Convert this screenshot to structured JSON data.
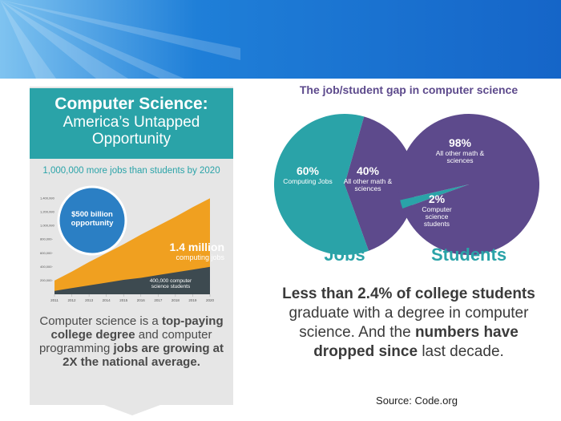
{
  "left": {
    "title": "Computer Science:",
    "subtitle": "America’s Untapped Opportunity",
    "callout": "$500 billion opportunity",
    "text": [
      {
        "text": "Computer science is a ",
        "bold": false
      },
      {
        "text": "top-paying college degree",
        "bold": true
      },
      {
        "text": " and computer programming ",
        "bold": false
      },
      {
        "text": "jobs are growing at 2X the national average.",
        "bold": true
      }
    ]
  },
  "right": {
    "title": "The job/student gap in computer science",
    "text": [
      {
        "text": "Less than 2.4% of college students",
        "bold": true
      },
      {
        "text": " graduate with a degree in computer science. And the ",
        "bold": false
      },
      {
        "text": "numbers have dropped since",
        "bold": true
      },
      {
        "text": " last decade.",
        "bold": false
      }
    ],
    "source": "Source: Code.org"
  },
  "chart_data": [
    {
      "type": "area",
      "title": "1,000,000 more jobs than students by 2020",
      "x": [
        2011,
        2012,
        2013,
        2014,
        2015,
        2016,
        2017,
        2018,
        2019,
        2020
      ],
      "series": [
        {
          "color": "#f0a020",
          "values": [
            200000,
            330000,
            470000,
            600000,
            730000,
            870000,
            1000000,
            1130000,
            1270000,
            1400000
          ]
        },
        {
          "color": "#3d4a50",
          "values": [
            50000,
            90000,
            130000,
            170000,
            210000,
            240000,
            280000,
            320000,
            360000,
            400000
          ]
        }
      ],
      "annotations": [
        {
          "text": "1.4 million",
          "subtext": "computing jobs"
        },
        {
          "text": "400,000 computer science students"
        }
      ],
      "ylim": [
        0,
        1450000
      ],
      "yticks": [
        {
          "value": 200000,
          "label": "200,000"
        },
        {
          "value": 400000,
          "label": "400,000"
        },
        {
          "value": 600000,
          "label": "600,000"
        },
        {
          "value": 800000,
          "label": "800,000"
        },
        {
          "value": 1000000,
          "label": "1,000,000"
        },
        {
          "value": 1200000,
          "label": "1,200,000"
        },
        {
          "value": 1400000,
          "label": "1,400,000"
        }
      ],
      "xticks": [
        2011,
        2012,
        2013,
        2014,
        2015,
        2016,
        2017,
        2018,
        2019,
        2020
      ]
    },
    {
      "type": "pie",
      "title": "Jobs",
      "categories": [
        "Computing Jobs",
        "All other math & sciences"
      ],
      "values": [
        60,
        40
      ],
      "value_labels": [
        "60%",
        "40%"
      ],
      "colors": [
        "#2aa3a8",
        "#5d4a8c"
      ]
    },
    {
      "type": "pie",
      "title": "Students",
      "categories": [
        "Computer science students",
        "All other math & sciences"
      ],
      "values": [
        2,
        98
      ],
      "value_labels": [
        "2%",
        "98%"
      ],
      "colors": [
        "#2aa3a8",
        "#5d4a8c"
      ]
    }
  ]
}
